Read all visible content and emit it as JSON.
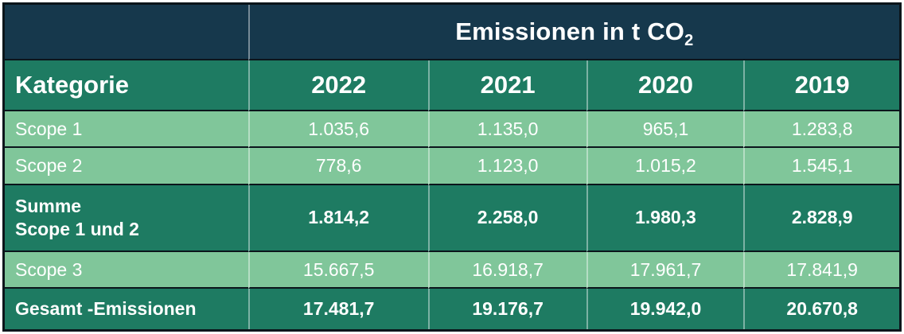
{
  "colors": {
    "navy": "#16384c",
    "green": "#1e7b62",
    "light_green": "#80c69a",
    "line_black": "#0b151b",
    "text": "#ffffff"
  },
  "header": {
    "title_main": "Emissionen in t CO",
    "title_sub": "2"
  },
  "columns": [
    "Kategorie",
    "2022",
    "2021",
    "2020",
    "2019"
  ],
  "rows": [
    {
      "label": "Scope 1",
      "values": [
        "1.035,6",
        "1.135,0",
        "965,1",
        "1.283,8"
      ]
    },
    {
      "label": "Scope 2",
      "values": [
        "778,6",
        "1.123,0",
        "1.015,2",
        "1.545,1"
      ]
    },
    {
      "label": "Summe\nScope 1 und 2",
      "values": [
        "1.814,2",
        "2.258,0",
        "1.980,3",
        "2.828,9"
      ]
    },
    {
      "label": "Scope 3",
      "values": [
        "15.667,5",
        "16.918,7",
        "17.961,7",
        "17.841,9"
      ]
    },
    {
      "label": "Gesamt -Emissionen",
      "values": [
        "17.481,7",
        "19.176,7",
        "19.942,0",
        "20.670,8"
      ]
    }
  ],
  "chart_data": {
    "type": "table",
    "title": "Emissionen in t CO2",
    "categories": [
      "2022",
      "2021",
      "2020",
      "2019"
    ],
    "row_header_label": "Kategorie",
    "series": [
      {
        "name": "Scope 1",
        "values": [
          1035.6,
          1135.0,
          965.1,
          1283.8
        ]
      },
      {
        "name": "Scope 2",
        "values": [
          778.6,
          1123.0,
          1015.2,
          1545.1
        ]
      },
      {
        "name": "Summe Scope 1 und 2",
        "values": [
          1814.2,
          2258.0,
          1980.3,
          2828.9
        ]
      },
      {
        "name": "Scope 3",
        "values": [
          15667.5,
          16918.7,
          17961.7,
          17841.9
        ]
      },
      {
        "name": "Gesamt -Emissionen",
        "values": [
          17481.7,
          19176.7,
          19942.0,
          20670.8
        ]
      }
    ],
    "value_format": "german-decimal (1.234,5)",
    "unit": "t CO2"
  }
}
